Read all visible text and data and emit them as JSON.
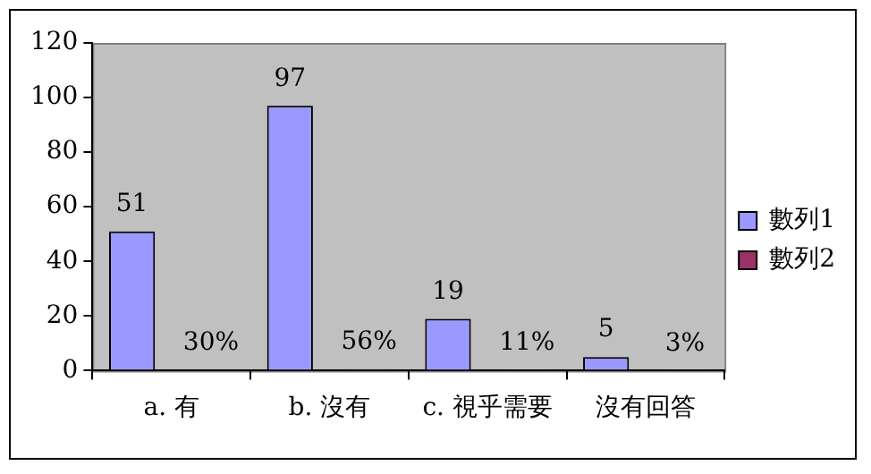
{
  "chart_data": {
    "type": "bar",
    "categories": [
      "a. 有",
      "b. 沒有",
      "c. 視乎需要",
      "沒有回答"
    ],
    "series": [
      {
        "name": "數列1",
        "color": "#9999ff",
        "values": [
          51,
          97,
          19,
          5
        ],
        "value_labels": [
          "51",
          "97",
          "19",
          "5"
        ]
      },
      {
        "name": "數列2",
        "color": "#993366",
        "values": [
          0.3,
          0.56,
          0.11,
          0.03
        ],
        "value_labels": [
          "30%",
          "56%",
          "11%",
          "3%"
        ]
      }
    ],
    "ylim": [
      0,
      120
    ],
    "yticks": [
      0,
      20,
      40,
      60,
      80,
      100,
      120
    ],
    "legend": "right"
  }
}
